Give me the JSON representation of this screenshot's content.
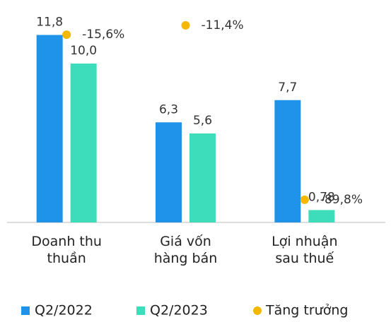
{
  "chart_data": {
    "type": "bar",
    "categories": [
      "Doanh thu thuần",
      "Giá vốn hàng bán",
      "Lợi nhuận sau thuế"
    ],
    "series": [
      {
        "name": "Q2/2022",
        "color": "#1f93ea",
        "values": [
          11.8,
          6.3,
          7.7
        ],
        "value_labels": [
          "11,8",
          "6,3",
          "7,7"
        ]
      },
      {
        "name": "Q2/2023",
        "color": "#3ddcbb",
        "values": [
          10.0,
          5.6,
          0.78
        ],
        "value_labels": [
          "10,0",
          "5,6",
          "0,78"
        ]
      },
      {
        "name": "Tăng trưởng",
        "color": "#f5b800",
        "type": "scatter",
        "axis": "y2",
        "values": [
          -15.6,
          -11.4,
          -89.8
        ],
        "value_labels": [
          "-15,6%",
          "-11,4%",
          "-89,8%"
        ]
      }
    ],
    "ylim": [
      0,
      14
    ],
    "y2lim": [
      -100,
      0
    ],
    "legend": "bottom"
  }
}
